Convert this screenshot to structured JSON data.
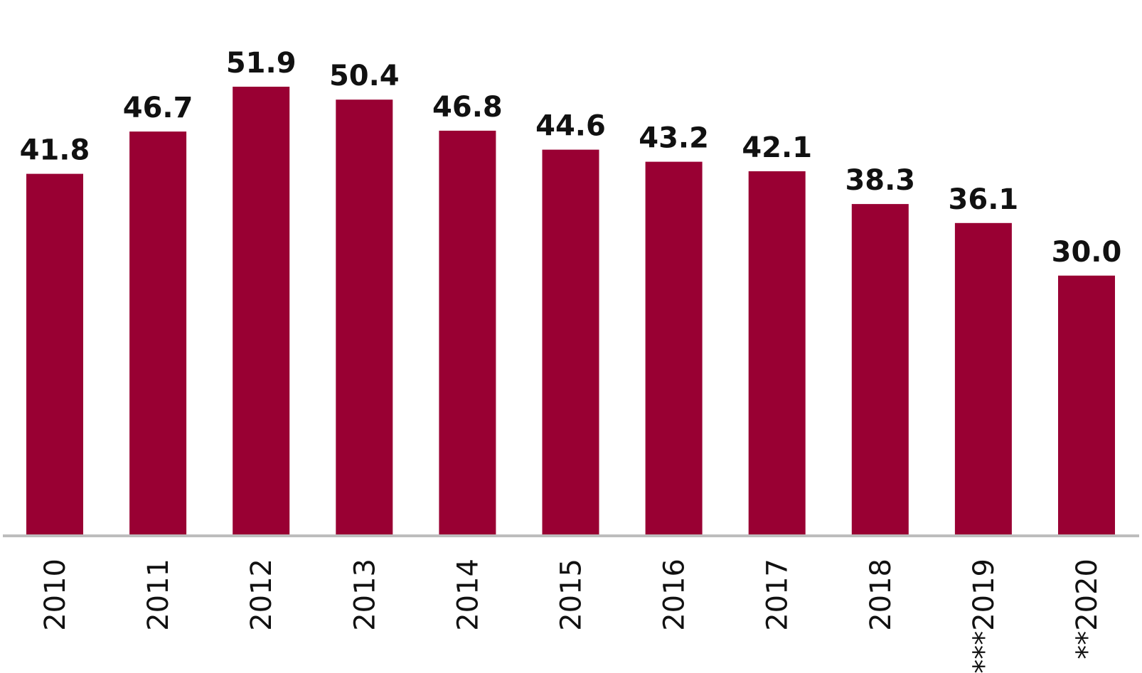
{
  "chart_data": {
    "type": "bar",
    "title": "",
    "xlabel": "",
    "ylabel": "",
    "categories": [
      "2010",
      "2011",
      "2012",
      "2013",
      "2014",
      "2015",
      "2016",
      "2017",
      "2018",
      "***2019",
      "**2020"
    ],
    "values": [
      41.8,
      46.7,
      51.9,
      50.4,
      46.8,
      44.6,
      43.2,
      42.1,
      38.3,
      36.1,
      30.0
    ],
    "value_labels": [
      "41.8",
      "46.7",
      "51.9",
      "50.4",
      "46.8",
      "44.6",
      "43.2",
      "42.1",
      "38.3",
      "36.1",
      "30.0"
    ],
    "ylim": [
      0,
      51.9
    ],
    "grid": false,
    "bar_color": "#990033",
    "axis_color": "#bdbdbd"
  }
}
